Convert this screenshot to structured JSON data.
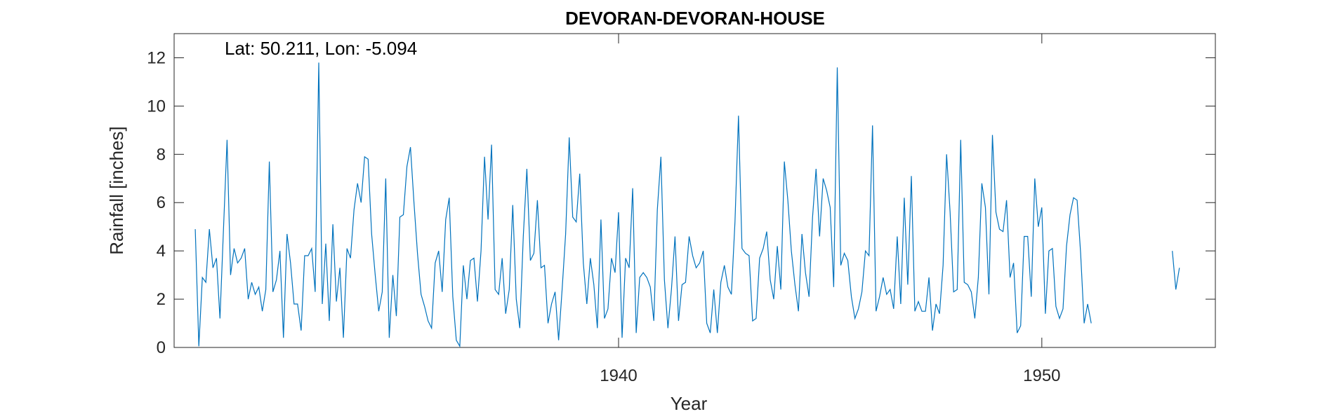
{
  "chart_data": {
    "type": "line",
    "title": "DEVORAN-DEVORAN-HOUSE",
    "xlabel": "Year",
    "ylabel": "Rainfall [inches]",
    "annotation": "Lat: 50.211, Lon: -5.094",
    "xlim": [
      1929.5,
      1954.1
    ],
    "ylim": [
      0,
      13
    ],
    "xticks": [
      1940,
      1950
    ],
    "yticks": [
      0,
      2,
      4,
      6,
      8,
      10,
      12
    ],
    "grid": false,
    "line_color": "#0072BD",
    "series": [
      {
        "segments": [
          {
            "start": "1930-01",
            "values": [
              4.9,
              0.05,
              2.9,
              2.7,
              4.9,
              3.3,
              3.7,
              1.2,
              4.9,
              8.6,
              3.0,
              4.1,
              3.5,
              3.7,
              4.1,
              2.0,
              2.7,
              2.2,
              2.5,
              1.5,
              2.4,
              7.7,
              2.3,
              2.8,
              4.0,
              0.4,
              4.7,
              3.5,
              1.8,
              1.8,
              0.7,
              3.8,
              3.8,
              4.1,
              2.3,
              11.8,
              1.8,
              4.3,
              1.1,
              5.1,
              1.9,
              3.3,
              0.4,
              4.1,
              3.7,
              5.7,
              6.8,
              6.0,
              7.9,
              7.8,
              4.7,
              3.0,
              1.5,
              2.3,
              7.0,
              0.4,
              3.0,
              1.3,
              5.4,
              5.5,
              7.5,
              8.3,
              6.0,
              3.9,
              2.2,
              1.7,
              1.1,
              0.8,
              3.5,
              4.0,
              2.3,
              5.3,
              6.2,
              2.1,
              0.3,
              0.05,
              3.4,
              2.0,
              3.6,
              3.7,
              1.9,
              4.0,
              7.9,
              5.3,
              8.4,
              2.4,
              2.2,
              3.7,
              1.4,
              2.4,
              5.9,
              2.0,
              0.8,
              4.6,
              7.4,
              3.6,
              3.9,
              6.1,
              3.3,
              3.4,
              1.0,
              1.8,
              2.3,
              0.3,
              2.4,
              4.7,
              8.7,
              5.4,
              5.2,
              7.2,
              3.5,
              1.8,
              3.7,
              2.6,
              0.8,
              5.3,
              1.2,
              1.6,
              3.7,
              3.1,
              5.6,
              0.4,
              3.7,
              3.3,
              6.6,
              0.6,
              2.9,
              3.1,
              2.9,
              2.5,
              1.1,
              5.7,
              7.9,
              2.8,
              0.8,
              2.4,
              4.6,
              1.1,
              2.6,
              2.7,
              4.6,
              3.8,
              3.3,
              3.5,
              4.0,
              1.0,
              0.6,
              2.4,
              0.6,
              2.7,
              3.4,
              2.5,
              2.2,
              5.2,
              9.6,
              4.1,
              3.9,
              3.8,
              1.1,
              1.2,
              3.7,
              4.1,
              4.8,
              2.8,
              2.0,
              4.2,
              2.4,
              7.7,
              6.1,
              4.0,
              2.6,
              1.5,
              4.7,
              3.1,
              2.1,
              5.4,
              7.4,
              4.6,
              7.0,
              6.5,
              5.8,
              2.5,
              11.6,
              3.4,
              3.9,
              3.6,
              2.1,
              1.2,
              1.6,
              2.3,
              4.0,
              3.8,
              9.2,
              1.5,
              2.1,
              2.9,
              2.2,
              2.4,
              1.6,
              4.6,
              1.8,
              6.2,
              2.6,
              7.1,
              1.5,
              1.9,
              1.5,
              1.5,
              2.9,
              0.7,
              1.8,
              1.4,
              3.4,
              8.0,
              5.6,
              2.3,
              2.4,
              8.6,
              2.7,
              2.6,
              2.3,
              1.2,
              2.9,
              6.8,
              5.8,
              2.2,
              8.8,
              5.6,
              4.9,
              4.8,
              6.1,
              2.9,
              3.5,
              0.6,
              0.9,
              4.6,
              4.6,
              2.1,
              7.0,
              5.0,
              5.8,
              1.4,
              4.0,
              4.1,
              1.7,
              1.2,
              1.6,
              4.2,
              5.5,
              6.2,
              6.1,
              3.9,
              1.0,
              1.8,
              1.0
            ]
          },
          {
            "start": "1953-02",
            "values": [
              4.0,
              2.4,
              3.3
            ]
          }
        ]
      }
    ]
  }
}
